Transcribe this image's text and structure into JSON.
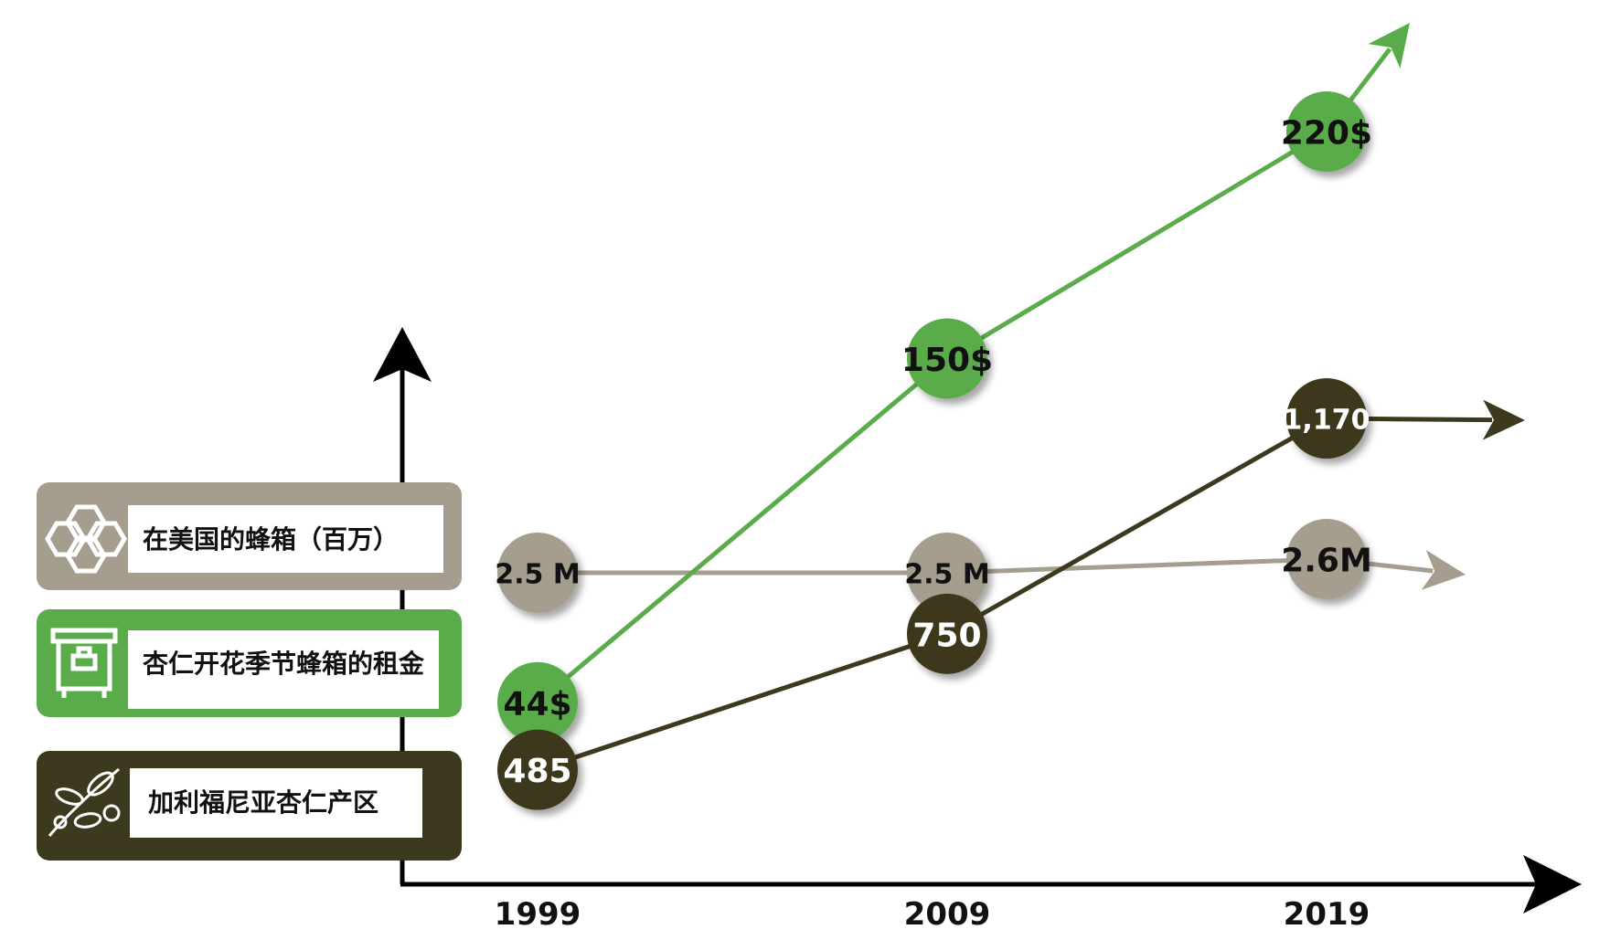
{
  "colors": {
    "hives": "#a59d8e",
    "rent": "#5aac4b",
    "almond": "#3d391f",
    "axis": "#000000"
  },
  "legend": [
    {
      "key": "hives",
      "label": "在美国的蜂箱（百万）",
      "icon": "honeycomb-icon"
    },
    {
      "key": "rent",
      "label": "杏仁开花季节蜂箱的租金",
      "icon": "beehive-icon"
    },
    {
      "key": "almond",
      "label": "加利福尼亚杏仁产区",
      "icon": "almond-branch-icon"
    }
  ],
  "chart_data": {
    "type": "line",
    "categories": [
      "1999",
      "2009",
      "2019"
    ],
    "series": [
      {
        "key": "hives",
        "values": [
          2.5,
          2.5,
          2.6
        ],
        "labels": [
          "2.5 M",
          "2.5 M",
          "2.6M"
        ]
      },
      {
        "key": "rent",
        "values": [
          44,
          150,
          220
        ],
        "labels": [
          "44$",
          "150$",
          "220$"
        ]
      },
      {
        "key": "almond",
        "values": [
          485,
          750,
          1170
        ],
        "labels": [
          "485",
          "750",
          "1,170"
        ]
      }
    ],
    "grid": false,
    "legend_position": "left"
  }
}
